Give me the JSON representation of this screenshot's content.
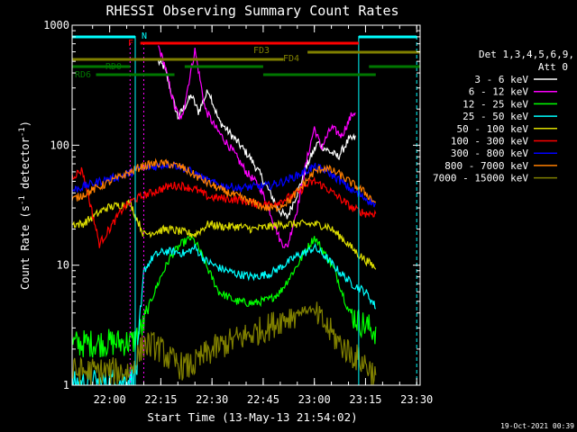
{
  "chart_data": {
    "type": "line",
    "title": "RHESSI Observing Summary Count Rates",
    "xlabel": "Start Time (13-May-13 21:54:02)",
    "ylabel_main": "Count Rate (s",
    "ylabel_sup1": "-1",
    "ylabel_mid": " detector",
    "ylabel_sup2": "-1",
    "ylabel_end": ")",
    "footer_date": "19-Oct-2021 00:39",
    "xlim_minutes": [
      -5,
      97
    ],
    "ylim": [
      1,
      1000
    ],
    "y_scale": "log",
    "x_ticks": [
      {
        "minute": 6,
        "label": "22:00"
      },
      {
        "minute": 21,
        "label": "22:15"
      },
      {
        "minute": 36,
        "label": "22:30"
      },
      {
        "minute": 51,
        "label": "22:45"
      },
      {
        "minute": 66,
        "label": "23:00"
      },
      {
        "minute": 81,
        "label": "23:15"
      },
      {
        "minute": 96,
        "label": "23:30"
      }
    ],
    "y_ticks": [
      {
        "value": 1,
        "label": "1"
      },
      {
        "value": 10,
        "label": "10"
      },
      {
        "value": 100,
        "label": "100"
      },
      {
        "value": 1000,
        "label": "1000"
      }
    ],
    "legend_header": [
      "Det 1,3,4,5,6,9,",
      "Att 0"
    ],
    "series": [
      {
        "name": "3 - 6 keV",
        "color": "#ffffff",
        "anchors": [
          [
            13,
            null
          ],
          [
            20,
            500
          ],
          [
            22,
            450
          ],
          [
            26,
            170
          ],
          [
            30,
            260
          ],
          [
            32,
            190
          ],
          [
            35,
            290
          ],
          [
            38,
            160
          ],
          [
            43,
            110
          ],
          [
            47,
            80
          ],
          [
            50,
            58
          ],
          [
            53,
            40
          ],
          [
            56,
            28
          ],
          [
            58,
            25
          ],
          [
            61,
            40
          ],
          [
            64,
            70
          ],
          [
            67,
            105
          ],
          [
            70,
            90
          ],
          [
            73,
            80
          ],
          [
            76,
            110
          ],
          [
            78,
            115
          ],
          [
            78.5,
            null
          ]
        ]
      },
      {
        "name": "6 - 12 keV",
        "color": "#ff00ff",
        "anchors": [
          [
            16,
            null
          ],
          [
            20,
            700
          ],
          [
            22,
            480
          ],
          [
            25,
            210
          ],
          [
            27,
            160
          ],
          [
            31,
            620
          ],
          [
            34,
            200
          ],
          [
            37,
            140
          ],
          [
            42,
            90
          ],
          [
            46,
            60
          ],
          [
            50,
            45
          ],
          [
            53,
            28
          ],
          [
            56,
            16
          ],
          [
            58,
            14
          ],
          [
            61,
            30
          ],
          [
            64,
            80
          ],
          [
            66,
            140
          ],
          [
            68,
            95
          ],
          [
            71,
            140
          ],
          [
            74,
            120
          ],
          [
            77,
            180
          ],
          [
            78,
            190
          ],
          [
            78.5,
            null
          ]
        ]
      },
      {
        "name": "12 - 25 keV",
        "color": "#00ff00",
        "anchors": [
          [
            -5,
            2.2
          ],
          [
            13,
            2.3
          ],
          [
            16,
            3.2
          ],
          [
            18,
            5
          ],
          [
            21,
            8
          ],
          [
            24,
            12
          ],
          [
            27,
            15
          ],
          [
            30,
            17
          ],
          [
            32,
            14
          ],
          [
            35,
            9
          ],
          [
            38,
            6
          ],
          [
            43,
            5
          ],
          [
            48,
            4.8
          ],
          [
            53,
            5.2
          ],
          [
            56,
            6
          ],
          [
            61,
            10
          ],
          [
            64,
            14
          ],
          [
            66,
            17
          ],
          [
            68,
            14
          ],
          [
            72,
            9
          ],
          [
            76,
            4.2
          ],
          [
            79,
            3.4
          ],
          [
            84,
            2.8
          ]
        ]
      },
      {
        "name": "25 - 50 keV",
        "color": "#00ffff",
        "anchors": [
          [
            -5,
            1.0
          ],
          [
            12,
            1.1
          ],
          [
            14,
            1.4
          ],
          [
            16,
            9
          ],
          [
            19,
            12
          ],
          [
            22,
            13
          ],
          [
            25,
            13
          ],
          [
            28,
            12.5
          ],
          [
            31,
            14
          ],
          [
            34,
            11
          ],
          [
            38,
            9.5
          ],
          [
            43,
            8.5
          ],
          [
            48,
            8
          ],
          [
            53,
            8.5
          ],
          [
            57,
            10
          ],
          [
            61,
            12
          ],
          [
            64,
            13
          ],
          [
            66,
            14
          ],
          [
            69,
            12
          ],
          [
            73,
            9
          ],
          [
            77,
            7
          ],
          [
            81,
            6
          ],
          [
            84,
            4.5
          ]
        ]
      },
      {
        "name": "50 - 100 keV",
        "color": "#dddd00",
        "anchors": [
          [
            -5,
            22
          ],
          [
            -2,
            22
          ],
          [
            5,
            30
          ],
          [
            12,
            33
          ],
          [
            16,
            18
          ],
          [
            19,
            19
          ],
          [
            23,
            20
          ],
          [
            27,
            19
          ],
          [
            31,
            18
          ],
          [
            35,
            22
          ],
          [
            39,
            21
          ],
          [
            44,
            21
          ],
          [
            48,
            20
          ],
          [
            53,
            21
          ],
          [
            57,
            22
          ],
          [
            62,
            22
          ],
          [
            66,
            22
          ],
          [
            70,
            21
          ],
          [
            74,
            17
          ],
          [
            78,
            13
          ],
          [
            81,
            11
          ],
          [
            84,
            9.5
          ]
        ]
      },
      {
        "name": "100 - 300 keV",
        "color": "#ff0000",
        "anchors": [
          [
            -5,
            55
          ],
          [
            -2,
            62
          ],
          [
            3,
            15
          ],
          [
            10,
            30
          ],
          [
            13,
            35
          ],
          [
            16,
            38
          ],
          [
            20,
            42
          ],
          [
            24,
            46
          ],
          [
            27,
            46
          ],
          [
            31,
            43
          ],
          [
            35,
            37
          ],
          [
            39,
            36
          ],
          [
            44,
            35
          ],
          [
            48,
            33
          ],
          [
            53,
            32
          ],
          [
            57,
            35
          ],
          [
            61,
            40
          ],
          [
            64,
            47
          ],
          [
            66,
            50
          ],
          [
            69,
            45
          ],
          [
            73,
            37
          ],
          [
            77,
            30
          ],
          [
            81,
            27
          ],
          [
            84,
            27
          ]
        ]
      },
      {
        "name": "300 - 800 keV",
        "color": "#0000ff",
        "anchors": [
          [
            -5,
            42
          ],
          [
            3,
            50
          ],
          [
            10,
            56
          ],
          [
            15,
            64
          ],
          [
            19,
            66
          ],
          [
            23,
            70
          ],
          [
            27,
            66
          ],
          [
            31,
            58
          ],
          [
            35,
            50
          ],
          [
            39,
            46
          ],
          [
            44,
            44
          ],
          [
            48,
            45
          ],
          [
            53,
            46
          ],
          [
            57,
            50
          ],
          [
            61,
            56
          ],
          [
            64,
            62
          ],
          [
            66,
            66
          ],
          [
            69,
            62
          ],
          [
            73,
            52
          ],
          [
            77,
            42
          ],
          [
            81,
            36
          ],
          [
            84,
            32
          ]
        ]
      },
      {
        "name": "800 - 7000 keV",
        "color": "#ff7f00",
        "anchors": [
          [
            -5,
            35
          ],
          [
            3,
            45
          ],
          [
            10,
            56
          ],
          [
            15,
            66
          ],
          [
            19,
            70
          ],
          [
            23,
            70
          ],
          [
            27,
            66
          ],
          [
            31,
            56
          ],
          [
            35,
            48
          ],
          [
            39,
            42
          ],
          [
            44,
            37
          ],
          [
            48,
            33
          ],
          [
            52,
            30
          ],
          [
            55,
            30
          ],
          [
            59,
            35
          ],
          [
            63,
            48
          ],
          [
            66,
            60
          ],
          [
            69,
            65
          ],
          [
            73,
            58
          ],
          [
            77,
            48
          ],
          [
            81,
            40
          ],
          [
            84,
            33
          ]
        ]
      },
      {
        "name": "7000 - 15000 keV",
        "color": "#808000",
        "anchors": [
          [
            -5,
            1.3
          ],
          [
            12,
            1.3
          ],
          [
            16,
            2.2
          ],
          [
            20,
            2.1
          ],
          [
            24,
            1.6
          ],
          [
            28,
            1.4
          ],
          [
            31,
            1.5
          ],
          [
            34,
            1.8
          ],
          [
            38,
            2.1
          ],
          [
            43,
            2.4
          ],
          [
            48,
            2.7
          ],
          [
            53,
            3.1
          ],
          [
            56,
            3.5
          ],
          [
            60,
            3.9
          ],
          [
            63,
            4.2
          ],
          [
            65,
            4.3
          ],
          [
            69,
            3.2
          ],
          [
            73,
            2.3
          ],
          [
            77,
            1.8
          ],
          [
            81,
            1.5
          ],
          [
            84,
            1.2
          ]
        ]
      }
    ],
    "flag_bars": [
      {
        "label": "N",
        "color": "#00ffff",
        "level": 1,
        "segments": [
          [
            -5,
            13.5
          ],
          [
            79,
            96
          ]
        ]
      },
      {
        "label": "F",
        "color": "#ff0000",
        "level": 2,
        "segments": [
          [
            15,
            79
          ]
        ]
      },
      {
        "label": "FD3",
        "color": "#808000",
        "level": 3,
        "segments": [
          [
            -5,
            57
          ]
        ]
      },
      {
        "label": "FD4",
        "color": "#808000",
        "level": 4,
        "segments": [
          [
            64,
            97
          ]
        ]
      },
      {
        "label": "RD0",
        "color": "#007700",
        "level": 5,
        "segments": [
          [
            -5,
            12
          ],
          [
            28,
            51
          ],
          [
            82,
            97
          ]
        ]
      },
      {
        "label": "RD6",
        "color": "#007700",
        "level": 6,
        "segments": [
          [
            2,
            25
          ],
          [
            51,
            84
          ]
        ]
      }
    ],
    "saa_boundaries": [
      {
        "minute": 13.5,
        "color": "#00ffff",
        "style": "solid"
      },
      {
        "minute": 79,
        "color": "#00ffff",
        "style": "solid"
      },
      {
        "minute": 96,
        "color": "#00ffff",
        "style": "dashed"
      }
    ],
    "extra_dotted_markers": [
      {
        "minute": 12,
        "color": "#ff00ff"
      },
      {
        "minute": 16,
        "color": "#ff00ff"
      }
    ]
  }
}
